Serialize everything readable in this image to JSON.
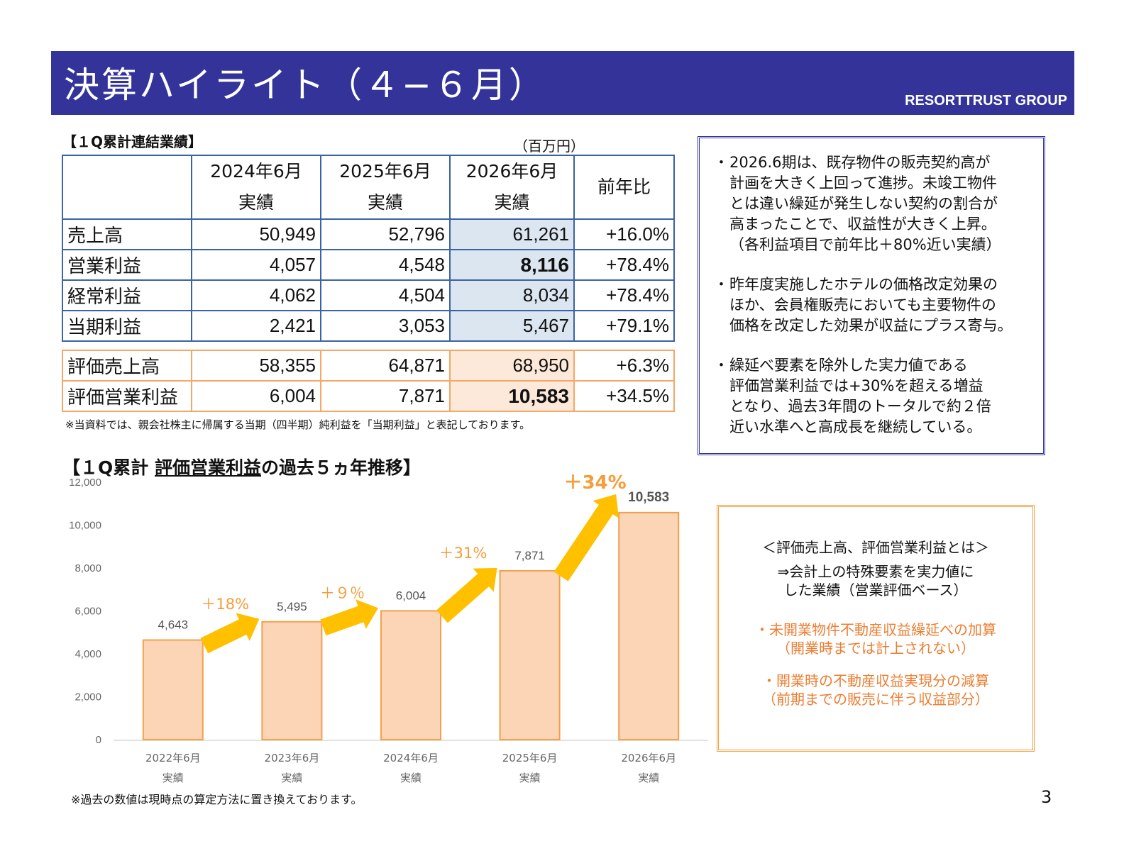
{
  "header": {
    "title": "決算ハイライト（４−６月）",
    "brand": "RESORTTRUST GROUP"
  },
  "results": {
    "section_title": "【１Q累計連結業績】",
    "unit": "（百万円）",
    "columns": [
      {
        "line1": "2024年6月",
        "line2": "実績"
      },
      {
        "line1": "2025年6月",
        "line2": "実績"
      },
      {
        "line1": "2026年6月",
        "line2": "実績"
      }
    ],
    "yoy_header": "前年比",
    "rows": [
      {
        "label": "売上高",
        "v1": "50,949",
        "v2": "52,796",
        "v3": "61,261",
        "yoy": "+16.0%"
      },
      {
        "label": "営業利益",
        "v1": "4,057",
        "v2": "4,548",
        "v3": "8,116",
        "yoy": "+78.4%"
      },
      {
        "label": "経常利益",
        "v1": "4,062",
        "v2": "4,504",
        "v3": "8,034",
        "yoy": "+78.4%"
      },
      {
        "label": "当期利益",
        "v1": "2,421",
        "v2": "3,053",
        "v3": "5,467",
        "yoy": "+79.1%"
      }
    ],
    "eval_rows": [
      {
        "label": "評価売上高",
        "v1": "58,355",
        "v2": "64,871",
        "v3": "68,950",
        "yoy": "+6.3%"
      },
      {
        "label": "評価営業利益",
        "v1": "6,004",
        "v2": "7,871",
        "v3": "10,583",
        "yoy": "+34.5%"
      }
    ],
    "footnote": "※当資料では、親会社株主に帰属する当期（四半期）純利益を「当期利益」と表記しております。"
  },
  "commentary": [
    {
      "dot": "・",
      "lines": [
        "2026.6期は、既存物件の販売契約高が",
        "計画を大きく上回って進捗。未竣工物件",
        "とは違い繰延が発生しない契約の割合が",
        "高まったことで、収益性が大きく上昇。",
        "（各利益項目で前年比＋80%近い実績）"
      ]
    },
    {
      "dot": "・",
      "lines": [
        "昨年度実施したホテルの価格改定効果の",
        "ほか、会員権販売においても主要物件の",
        "価格を改定した効果が収益にプラス寄与。"
      ]
    },
    {
      "dot": "・",
      "lines": [
        "繰延べ要素を除外した実力値である",
        "評価営業利益では+30%を超える増益",
        "となり、過去3年間のトータルで約２倍",
        "近い水準へと高成長を継続している。"
      ]
    }
  ],
  "trend": {
    "title_prefix": "【１Q累計 ",
    "title_underlined": "評価営業利益",
    "title_suffix": "の過去５ヵ年推移】",
    "footnote": "※過去の数値は現時点の算定方法に置き換えております。"
  },
  "definition_box": {
    "heading": "＜評価売上高、評価営業利益とは＞",
    "desc1": "⇒会計上の特殊要素を実力値に",
    "desc2": "した業績（営業評価ベース）",
    "item1a": "・未開業物件不動産収益繰延べの加算",
    "item1b": "（開業時までは計上されない）",
    "item2a": "・開業時の不動産収益実現分の減算",
    "item2b": "（前期までの販売に伴う収益部分）"
  },
  "page_number": "3",
  "chart_data": {
    "type": "bar",
    "categories": [
      "2022年6月\n実績",
      "2023年6月\n実績",
      "2024年6月\n実績",
      "2025年6月\n実績",
      "2026年6月\n実績"
    ],
    "category_line1": [
      "2022年6月",
      "2023年6月",
      "2024年6月",
      "2025年6月",
      "2026年6月"
    ],
    "category_line2": [
      "実績",
      "実績",
      "実績",
      "実績",
      "実績"
    ],
    "values": [
      4643,
      5495,
      6004,
      7871,
      10583
    ],
    "data_labels": [
      "4,643",
      "5,495",
      "6,004",
      "7,871",
      "10,583"
    ],
    "growth_labels": [
      "＋18%",
      "＋９％",
      "＋31%",
      "＋34%"
    ],
    "ylim": [
      0,
      12000
    ],
    "yticks": [
      0,
      2000,
      4000,
      6000,
      8000,
      10000,
      12000
    ],
    "ytick_labels": [
      "0",
      "2,000",
      "4,000",
      "6,000",
      "8,000",
      "10,000",
      "12,000"
    ],
    "grid": false,
    "colors": {
      "bar_fill": "#fbd5b5",
      "bar_stroke": "#f4a04c",
      "arrow": "#ffc000",
      "growth_text": "#f59d3a",
      "axis_text": "#666666"
    }
  }
}
